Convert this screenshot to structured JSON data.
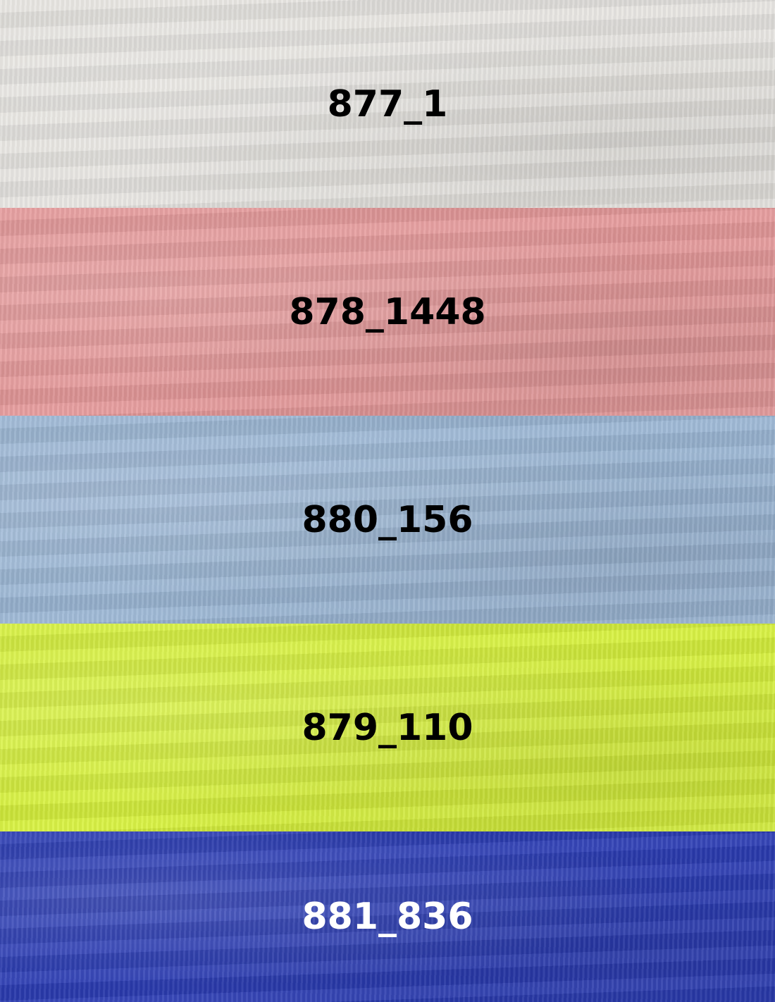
{
  "swatches": [
    {
      "code": "877_1",
      "color": "#e7e5e1",
      "text_color": "#000000"
    },
    {
      "code": "878_1448",
      "color": "#e5999a",
      "text_color": "#000000"
    },
    {
      "code": "880_156",
      "color": "#9bb6d4",
      "text_color": "#000000"
    },
    {
      "code": "879_110",
      "color": "#d6f03c",
      "text_color": "#000000"
    },
    {
      "code": "881_836",
      "color": "#2b3cb3",
      "text_color": "#ffffff"
    }
  ]
}
